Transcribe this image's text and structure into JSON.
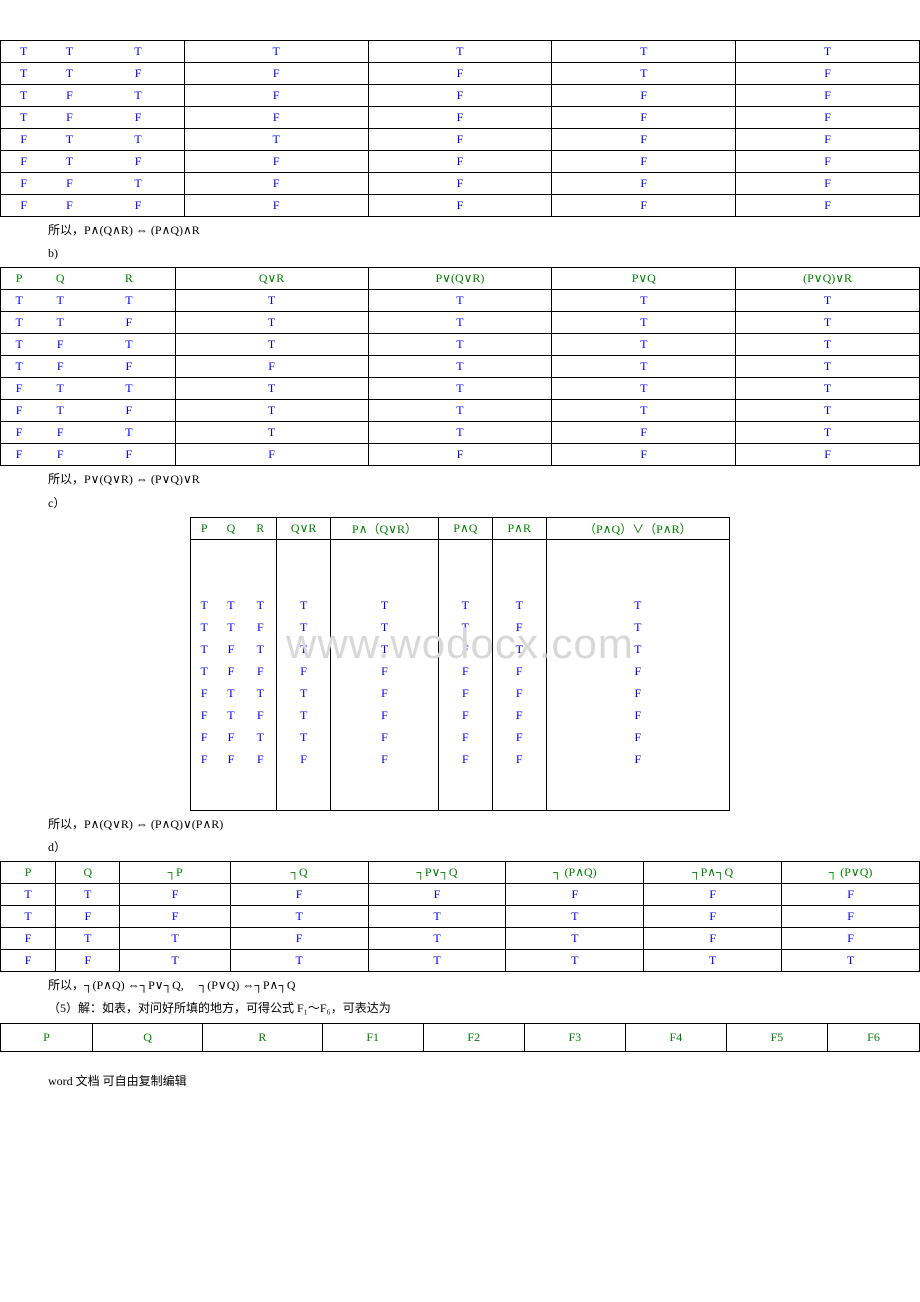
{
  "colors": {
    "header": "#008000",
    "value": "#0000ff",
    "text": "#000000",
    "watermark": "#d8d8d8"
  },
  "watermark": "www.wodocx.com",
  "tableA": {
    "rows": [
      [
        "T",
        "T",
        "T",
        "T",
        "T",
        "T",
        "T"
      ],
      [
        "T",
        "T",
        "F",
        "F",
        "F",
        "T",
        "F"
      ],
      [
        "T",
        "F",
        "T",
        "F",
        "F",
        "F",
        "F"
      ],
      [
        "T",
        "F",
        "F",
        "F",
        "F",
        "F",
        "F"
      ],
      [
        "F",
        "T",
        "T",
        "T",
        "F",
        "F",
        "F"
      ],
      [
        "F",
        "T",
        "F",
        "F",
        "F",
        "F",
        "F"
      ],
      [
        "F",
        "F",
        "T",
        "F",
        "F",
        "F",
        "F"
      ],
      [
        "F",
        "F",
        "F",
        "F",
        "F",
        "F",
        "F"
      ]
    ]
  },
  "textA": "所以，P∧(Q∧R) ⇔ (P∧Q)∧R",
  "labelB": "b)",
  "tableB": {
    "headers": [
      "P",
      "Q",
      "R",
      "Q∨R",
      "P∨(Q∨R)",
      "P∨Q",
      "(P∨Q)∨R"
    ],
    "rows": [
      [
        "T",
        "T",
        "T",
        "T",
        "T",
        "T",
        "T"
      ],
      [
        "T",
        "T",
        "F",
        "T",
        "T",
        "T",
        "T"
      ],
      [
        "T",
        "F",
        "T",
        "T",
        "T",
        "T",
        "T"
      ],
      [
        "T",
        "F",
        "F",
        "F",
        "T",
        "T",
        "T"
      ],
      [
        "F",
        "T",
        "T",
        "T",
        "T",
        "T",
        "T"
      ],
      [
        "F",
        "T",
        "F",
        "T",
        "T",
        "T",
        "T"
      ],
      [
        "F",
        "F",
        "T",
        "T",
        "T",
        "F",
        "T"
      ],
      [
        "F",
        "F",
        "F",
        "F",
        "F",
        "F",
        "F"
      ]
    ]
  },
  "textB": "所以，P∨(Q∨R) ⇔ (P∨Q)∨R",
  "labelC": "c）",
  "tableC": {
    "headers": [
      "P",
      "Q",
      "R",
      "Q∨R",
      "P∧（Q∨R）",
      "P∧Q",
      "P∧R",
      "（P∧Q）∨（P∧R）"
    ],
    "rows": [
      [
        "T",
        "T",
        "T",
        "T",
        "T",
        "T",
        "T",
        "T"
      ],
      [
        "T",
        "T",
        "F",
        "T",
        "T",
        "T",
        "F",
        "T"
      ],
      [
        "T",
        "F",
        "T",
        "T",
        "T",
        "F",
        "T",
        "T"
      ],
      [
        "T",
        "F",
        "F",
        "F",
        "F",
        "F",
        "F",
        "F"
      ],
      [
        "F",
        "T",
        "T",
        "T",
        "F",
        "F",
        "F",
        "F"
      ],
      [
        "F",
        "T",
        "F",
        "T",
        "F",
        "F",
        "F",
        "F"
      ],
      [
        "F",
        "F",
        "T",
        "T",
        "F",
        "F",
        "F",
        "F"
      ],
      [
        "F",
        "F",
        "F",
        "F",
        "F",
        "F",
        "F",
        "F"
      ]
    ]
  },
  "textC": "所以，P∧(Q∨R) ⇔ (P∧Q)∨(P∧R)",
  "labelD": "d）",
  "tableD": {
    "headers": [
      "P",
      "Q",
      "┐P",
      "┐Q",
      "┐P∨┐Q",
      "┐ (P∧Q)",
      "┐P∧┐Q",
      "┐ (P∨Q)"
    ],
    "rows": [
      [
        "T",
        "T",
        "F",
        "F",
        "F",
        "F",
        "F",
        "F"
      ],
      [
        "T",
        "F",
        "F",
        "T",
        "T",
        "T",
        "F",
        "F"
      ],
      [
        "F",
        "T",
        "T",
        "F",
        "T",
        "T",
        "F",
        "F"
      ],
      [
        "F",
        "F",
        "T",
        "T",
        "T",
        "T",
        "T",
        "T"
      ]
    ]
  },
  "textD": "所以，┐(P∧Q) ⇔┐P∨┐Q,　 ┐(P∨Q) ⇔┐P∧┐Q",
  "text5": "（5）解：如表，对问好所填的地方，可得公式 F₁～F₆，可表达为",
  "tableE": {
    "headers": [
      "P",
      "Q",
      "R",
      "F1",
      "F2",
      "F3",
      "F4",
      "F5",
      "F6"
    ]
  },
  "footer": "word 文档 可自由复制编辑"
}
